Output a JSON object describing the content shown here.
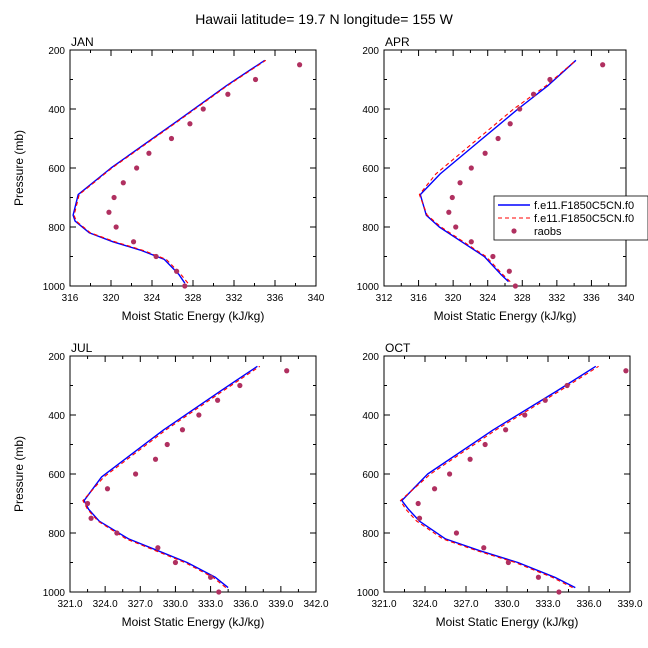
{
  "title": "Hawaii  latitude= 19.7 N longitude= 155 W",
  "colors": {
    "model1": "#0000ff",
    "model2": "#ff0000",
    "raobs": "#b03060",
    "axis": "#000000"
  },
  "legend": {
    "entries": [
      {
        "label": "f.e11.F1850C5CN.f0",
        "style": "solid"
      },
      {
        "label": "f.e11.F1850C5CN.f0",
        "style": "dashed"
      },
      {
        "label": "raobs",
        "style": "marker"
      }
    ]
  },
  "chart_data": [
    {
      "type": "line",
      "panel": "JAN",
      "xlabel": "Moist Static Energy (kJ/kg)",
      "ylabel": "Pressure (mb)",
      "xlim": [
        316,
        340
      ],
      "ylim": [
        1000,
        200
      ],
      "xticks": [
        316,
        320,
        324,
        328,
        332,
        336,
        340
      ],
      "xtick_labels": [
        "316",
        "320",
        "324",
        "328",
        "332",
        "336",
        "340"
      ],
      "yticks": [
        200,
        400,
        600,
        800,
        1000
      ],
      "series": [
        {
          "name": "f.e11.F1850C5CN.f0 (solid)",
          "x": [
            327.2,
            326.6,
            325.2,
            323.0,
            320.2,
            317.9,
            316.5,
            316.3,
            316.8,
            320.0,
            326.5,
            331.3,
            335.0
          ],
          "y": [
            990,
            960,
            910,
            880,
            850,
            820,
            780,
            760,
            690,
            600,
            440,
            320,
            235
          ]
        },
        {
          "name": "f.e11.F1850C5CN.f0 (dashed)",
          "x": [
            327.5,
            326.8,
            325.4,
            323.2,
            320.4,
            318.0,
            316.6,
            316.4,
            316.9,
            320.1,
            326.6,
            331.4,
            335.1
          ],
          "y": [
            990,
            960,
            910,
            880,
            850,
            820,
            780,
            760,
            690,
            600,
            440,
            320,
            235
          ]
        },
        {
          "name": "raobs",
          "x": [
            327.2,
            326.4,
            324.4,
            322.2,
            320.5,
            319.8,
            320.3,
            321.2,
            322.5,
            323.7,
            325.9,
            327.7,
            329.0,
            331.4,
            334.1,
            338.4
          ],
          "y": [
            1000,
            950,
            900,
            850,
            800,
            750,
            700,
            650,
            600,
            550,
            500,
            450,
            400,
            350,
            300,
            250
          ]
        }
      ]
    },
    {
      "type": "line",
      "panel": "APR",
      "xlabel": "Moist Static Energy (kJ/kg)",
      "ylabel": "",
      "xlim": [
        312,
        340
      ],
      "ylim": [
        1000,
        200
      ],
      "xticks": [
        312,
        316,
        320,
        324,
        328,
        332,
        336,
        340
      ],
      "xtick_labels": [
        "312",
        "316",
        "320",
        "324",
        "328",
        "332",
        "336",
        "340"
      ],
      "yticks": [
        200,
        400,
        600,
        800,
        1000
      ],
      "series": [
        {
          "name": "f.e11.F1850C5CN.f0 (solid)",
          "x": [
            326.4,
            325.5,
            323.6,
            321.0,
            318.4,
            316.9,
            316.2,
            318.5,
            323.0,
            327.5,
            331.0,
            334.2
          ],
          "y": [
            985,
            960,
            900,
            850,
            800,
            760,
            690,
            620,
            510,
            400,
            320,
            235
          ]
        },
        {
          "name": "f.e11.F1850C5CN.f0 (dashed)",
          "x": [
            326.6,
            325.7,
            323.8,
            321.2,
            318.6,
            317.0,
            316.1,
            318.0,
            322.5,
            327.0,
            330.8,
            334.2
          ],
          "y": [
            985,
            960,
            900,
            850,
            800,
            760,
            690,
            620,
            510,
            400,
            320,
            235
          ]
        },
        {
          "name": "raobs",
          "x": [
            327.2,
            326.5,
            324.6,
            322.1,
            320.3,
            319.5,
            319.9,
            320.8,
            322.1,
            323.7,
            325.2,
            326.6,
            327.7,
            329.3,
            331.2,
            337.3
          ],
          "y": [
            1000,
            950,
            900,
            850,
            800,
            750,
            700,
            650,
            600,
            550,
            500,
            450,
            400,
            350,
            300,
            250
          ]
        }
      ]
    },
    {
      "type": "line",
      "panel": "JUL",
      "xlabel": "Moist Static Energy (kJ/kg)",
      "ylabel": "Pressure (mb)",
      "xlim": [
        321,
        342
      ],
      "ylim": [
        1000,
        200
      ],
      "xticks": [
        321,
        324,
        327,
        330,
        333,
        336,
        339,
        342
      ],
      "xtick_labels": [
        "321.0",
        "324.0",
        "327.0",
        "330.0",
        "333.0",
        "336.0",
        "339.0",
        "342.0"
      ],
      "yticks": [
        200,
        400,
        600,
        800,
        1000
      ],
      "series": [
        {
          "name": "f.e11.F1850C5CN.f0 (solid)",
          "x": [
            334.5,
            333.4,
            331.0,
            328.5,
            326.0,
            323.5,
            322.6,
            322.2,
            323.7,
            329.0,
            333.8,
            337.0
          ],
          "y": [
            985,
            950,
            900,
            860,
            820,
            760,
            720,
            690,
            610,
            450,
            320,
            235
          ]
        },
        {
          "name": "f.e11.F1850C5CN.f0 (dashed)",
          "x": [
            334.3,
            333.2,
            330.8,
            328.3,
            325.8,
            323.4,
            322.5,
            322.1,
            323.9,
            329.2,
            334.0,
            337.2
          ],
          "y": [
            985,
            950,
            900,
            860,
            820,
            760,
            720,
            690,
            610,
            450,
            320,
            235
          ]
        },
        {
          "name": "raobs",
          "x": [
            333.7,
            333.0,
            330.0,
            328.5,
            325.0,
            322.8,
            322.5,
            324.2,
            326.6,
            328.3,
            329.3,
            330.6,
            332.0,
            333.6,
            335.5,
            339.5
          ],
          "y": [
            1000,
            950,
            900,
            850,
            800,
            750,
            700,
            650,
            600,
            550,
            500,
            450,
            400,
            350,
            300,
            250
          ]
        }
      ]
    },
    {
      "type": "line",
      "panel": "OCT",
      "xlabel": "Moist Static Energy (kJ/kg)",
      "ylabel": "",
      "xlim": [
        321,
        339
      ],
      "ylim": [
        1000,
        200
      ],
      "xticks": [
        321,
        324,
        327,
        330,
        333,
        336,
        339
      ],
      "xtick_labels": [
        "321.0",
        "324.0",
        "327.0",
        "330.0",
        "333.0",
        "336.0",
        "339.0"
      ],
      "yticks": [
        200,
        400,
        600,
        800,
        1000
      ],
      "series": [
        {
          "name": "f.e11.F1850C5CN.f0 (solid)",
          "x": [
            335.0,
            333.5,
            330.8,
            328.0,
            325.5,
            323.6,
            322.8,
            322.3,
            324.2,
            329.0,
            333.6,
            336.5
          ],
          "y": [
            985,
            950,
            900,
            860,
            820,
            760,
            720,
            690,
            600,
            450,
            320,
            235
          ]
        },
        {
          "name": "f.e11.F1850C5CN.f0 (dashed)",
          "x": [
            334.8,
            333.3,
            330.6,
            327.8,
            325.3,
            323.4,
            322.6,
            322.2,
            324.4,
            329.2,
            333.8,
            336.7
          ],
          "y": [
            985,
            950,
            900,
            860,
            820,
            760,
            720,
            690,
            600,
            450,
            320,
            235
          ]
        },
        {
          "name": "raobs",
          "x": [
            333.8,
            332.3,
            330.1,
            328.3,
            326.3,
            323.6,
            323.5,
            324.7,
            325.8,
            327.3,
            328.4,
            329.9,
            331.3,
            332.8,
            334.4,
            338.7
          ],
          "y": [
            1000,
            950,
            900,
            850,
            800,
            750,
            700,
            650,
            600,
            550,
            500,
            450,
            400,
            350,
            300,
            250
          ]
        }
      ]
    }
  ]
}
